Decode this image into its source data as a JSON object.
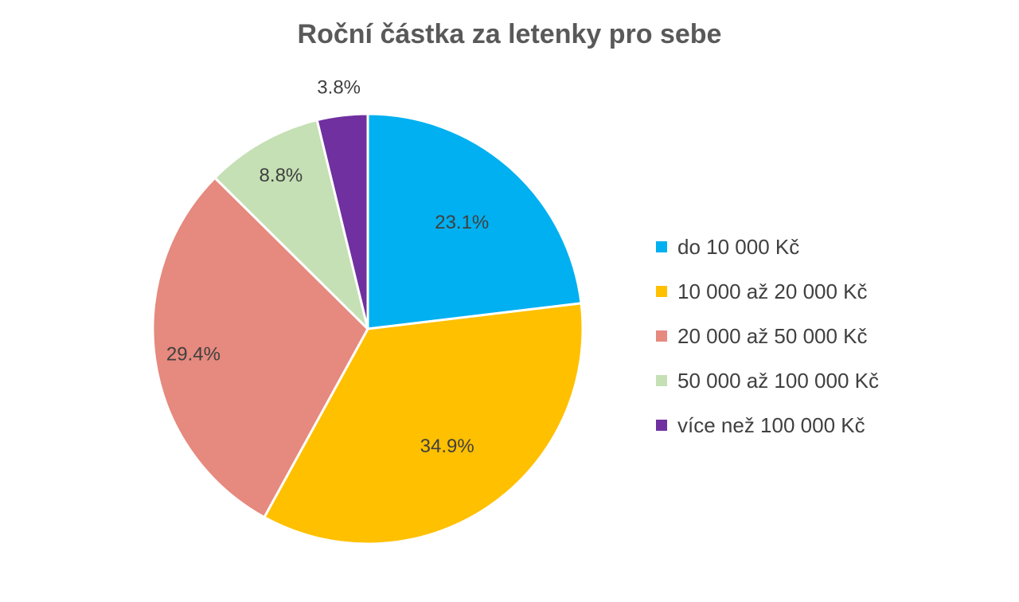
{
  "chart_data": {
    "type": "pie",
    "title": "Roční částka za letenky pro sebe",
    "legend_position": "right",
    "categories": [
      "do 10 000 Kč",
      "10 000 až 20 000 Kč",
      "20 000 až 50 000 Kč",
      "50 000 až 100 000 Kč",
      "více než 100 000 Kč"
    ],
    "values": [
      23.1,
      34.9,
      29.4,
      8.8,
      3.8
    ],
    "value_labels": [
      "23.1%",
      "34.9%",
      "29.4%",
      "8.8%",
      "3.8%"
    ],
    "colors": [
      "#00B0F0",
      "#FFC000",
      "#E6897E",
      "#C5E0B4",
      "#7030A0"
    ]
  }
}
